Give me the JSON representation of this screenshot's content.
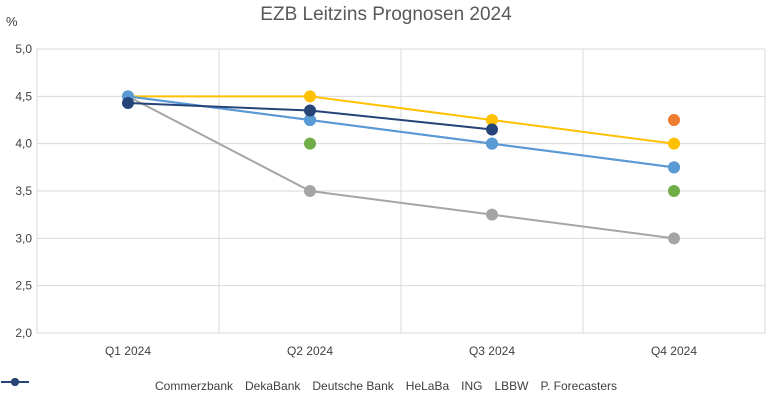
{
  "chart_data": {
    "type": "line",
    "title": "EZB Leitzins Prognosen 2024",
    "ylabel": "%",
    "xlabel": "",
    "categories": [
      "Q1 2024",
      "Q2 2024",
      "Q3 2024",
      "Q4 2024"
    ],
    "ylim": [
      2.0,
      5.0
    ],
    "yticks": [
      "5,0",
      "4,5",
      "4,0",
      "3,5",
      "3,0",
      "2,5",
      "2,0"
    ],
    "grid": true,
    "legend_position": "bottom",
    "series": [
      {
        "name": "Commerzbank",
        "color": "#4472C4",
        "values": [
          4.5,
          4.25,
          4.0,
          3.75
        ]
      },
      {
        "name": "DekaBank",
        "color": "#ED7D31",
        "values": [
          null,
          null,
          null,
          4.25
        ]
      },
      {
        "name": "Deutsche Bank",
        "color": "#A5A5A5",
        "values": [
          4.5,
          3.5,
          3.25,
          3.0
        ]
      },
      {
        "name": "HeLaBa",
        "color": "#FFC000",
        "values": [
          4.5,
          4.5,
          4.25,
          4.0
        ]
      },
      {
        "name": "ING",
        "color": "#5B9BD5",
        "values": [
          4.5,
          4.25,
          4.0,
          3.75
        ]
      },
      {
        "name": "LBBW",
        "color": "#70AD47",
        "values": [
          null,
          4.0,
          null,
          3.5
        ]
      },
      {
        "name": "P. Forecasters",
        "color": "#264478",
        "values": [
          4.43,
          4.35,
          4.15,
          null
        ]
      }
    ]
  }
}
